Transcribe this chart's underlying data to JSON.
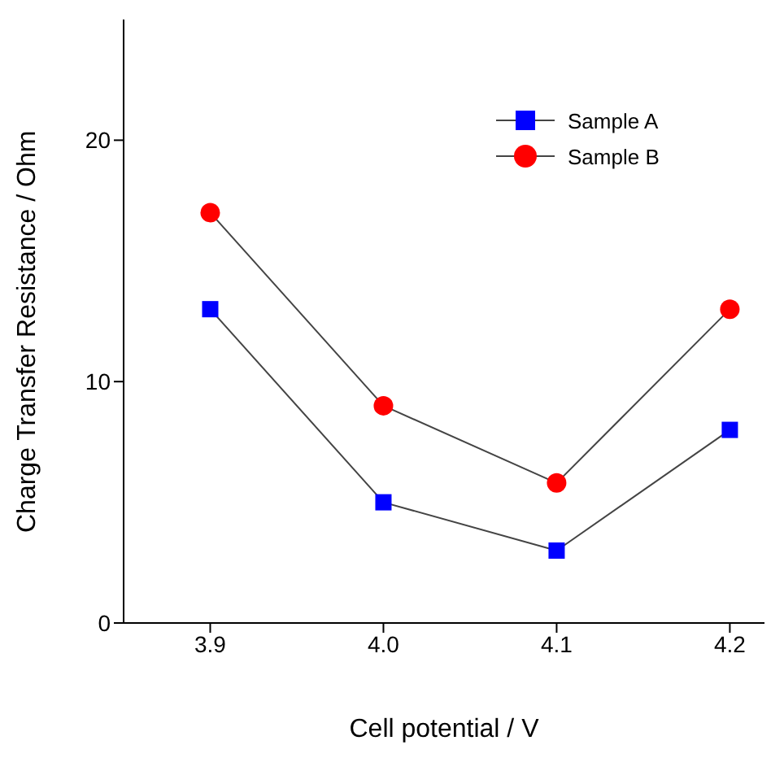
{
  "chart_data": {
    "type": "line",
    "xlabel": "Cell potential / V",
    "ylabel": "Charge Transfer Resistance / Ohm",
    "x": [
      3.9,
      4.0,
      4.1,
      4.2
    ],
    "series": [
      {
        "name": "Sample A",
        "color": "#0000ff",
        "marker": "square",
        "values": [
          13,
          5,
          3,
          8
        ]
      },
      {
        "name": "Sample B",
        "color": "#ff0000",
        "marker": "circle",
        "values": [
          17,
          9,
          5.8,
          13
        ]
      }
    ],
    "xlim": [
      3.85,
      4.22
    ],
    "xticks": [
      {
        "value": 3.9,
        "label": "3.9"
      },
      {
        "value": 4.0,
        "label": "4.0"
      },
      {
        "value": 4.1,
        "label": "4.1"
      },
      {
        "value": 4.2,
        "label": "4.2"
      }
    ],
    "ylim": [
      0,
      25
    ],
    "yticks": [
      0,
      10,
      20
    ],
    "grid": false,
    "legend": "top right",
    "line_style": "solid"
  }
}
